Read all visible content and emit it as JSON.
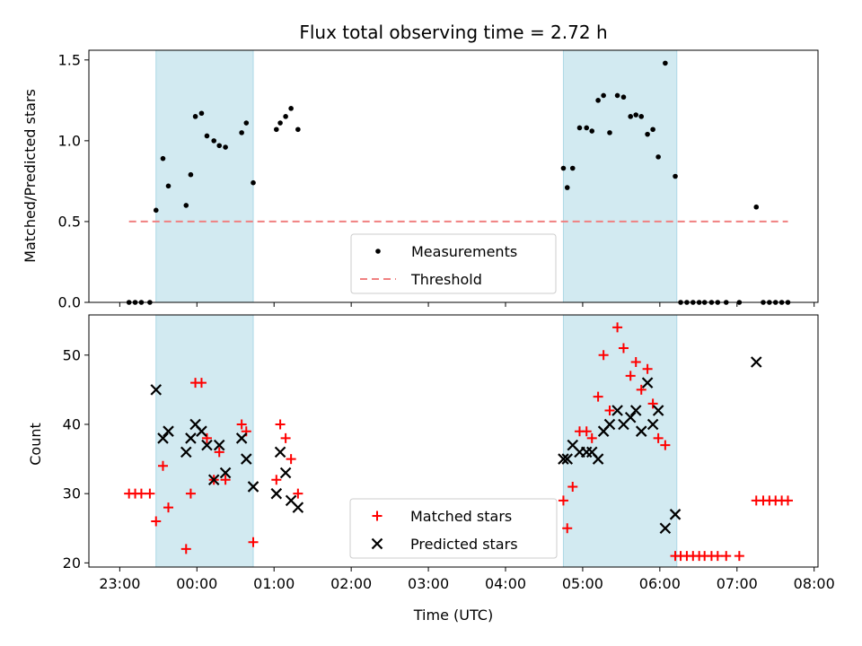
{
  "chart_data": {
    "type": "scatter",
    "title": "Flux total observing time = 2.72 h",
    "xlabel": "Time (UTC)",
    "x_unit": "hours after 23:00 UTC",
    "xlim": [
      -0.4,
      9.05
    ],
    "xticks": [
      {
        "value": 0,
        "label": "23:00"
      },
      {
        "value": 1,
        "label": "00:00"
      },
      {
        "value": 2,
        "label": "01:00"
      },
      {
        "value": 3,
        "label": "02:00"
      },
      {
        "value": 4,
        "label": "03:00"
      },
      {
        "value": 5,
        "label": "04:00"
      },
      {
        "value": 6,
        "label": "05:00"
      },
      {
        "value": 7,
        "label": "06:00"
      },
      {
        "value": 8,
        "label": "07:00"
      },
      {
        "value": 9,
        "label": "08:00"
      }
    ],
    "shaded_intervals": [
      [
        0.47,
        1.73
      ],
      [
        5.75,
        7.22
      ]
    ],
    "shade_color": "#add8e6",
    "panels": [
      {
        "ylabel": "Matched/Predicted stars",
        "ylim": [
          0,
          1.56
        ],
        "yticks": [
          {
            "value": 0,
            "label": "0.0"
          },
          {
            "value": 0.5,
            "label": "0.5"
          },
          {
            "value": 1.0,
            "label": "1.0"
          },
          {
            "value": 1.5,
            "label": "1.5"
          }
        ],
        "legend_position": "lower-center",
        "series": [
          {
            "name": "Measurements",
            "marker": "dot",
            "color": "#000000",
            "points": [
              [
                0.12,
                0
              ],
              [
                0.2,
                0
              ],
              [
                0.28,
                0
              ],
              [
                0.39,
                0
              ],
              [
                0.47,
                0.57
              ],
              [
                0.56,
                0.89
              ],
              [
                0.63,
                0.72
              ],
              [
                0.86,
                0.6
              ],
              [
                0.92,
                0.79
              ],
              [
                0.98,
                1.15
              ],
              [
                1.06,
                1.17
              ],
              [
                1.13,
                1.03
              ],
              [
                1.22,
                1.0
              ],
              [
                1.29,
                0.97
              ],
              [
                1.37,
                0.96
              ],
              [
                1.58,
                1.05
              ],
              [
                1.64,
                1.11
              ],
              [
                1.73,
                0.74
              ],
              [
                2.03,
                1.07
              ],
              [
                2.08,
                1.11
              ],
              [
                2.15,
                1.15
              ],
              [
                2.22,
                1.2
              ],
              [
                2.31,
                1.07
              ],
              [
                5.75,
                0.83
              ],
              [
                5.8,
                0.71
              ],
              [
                5.87,
                0.83
              ],
              [
                5.96,
                1.08
              ],
              [
                6.05,
                1.08
              ],
              [
                6.12,
                1.06
              ],
              [
                6.2,
                1.25
              ],
              [
                6.27,
                1.28
              ],
              [
                6.35,
                1.05
              ],
              [
                6.45,
                1.28
              ],
              [
                6.53,
                1.27
              ],
              [
                6.62,
                1.15
              ],
              [
                6.69,
                1.16
              ],
              [
                6.76,
                1.15
              ],
              [
                6.84,
                1.04
              ],
              [
                6.91,
                1.07
              ],
              [
                6.98,
                0.9
              ],
              [
                7.07,
                1.48
              ],
              [
                7.2,
                0.78
              ],
              [
                7.27,
                0
              ],
              [
                7.35,
                0
              ],
              [
                7.43,
                0
              ],
              [
                7.51,
                0
              ],
              [
                7.58,
                0
              ],
              [
                7.67,
                0
              ],
              [
                7.75,
                0
              ],
              [
                7.86,
                0
              ],
              [
                8.03,
                0
              ],
              [
                8.25,
                0.59
              ],
              [
                8.34,
                0
              ],
              [
                8.42,
                0
              ],
              [
                8.5,
                0
              ],
              [
                8.58,
                0
              ],
              [
                8.66,
                0
              ]
            ]
          },
          {
            "name": "Threshold",
            "marker": "dashed-line",
            "color": "#f08080",
            "points": [
              [
                0.12,
                0.5
              ],
              [
                8.66,
                0.5
              ]
            ]
          }
        ]
      },
      {
        "ylabel": "Count",
        "ylim": [
          19.4,
          55.8
        ],
        "yticks": [
          {
            "value": 20,
            "label": "20"
          },
          {
            "value": 30,
            "label": "30"
          },
          {
            "value": 40,
            "label": "40"
          },
          {
            "value": 50,
            "label": "50"
          }
        ],
        "legend_position": "lower-center",
        "series": [
          {
            "name": "Matched stars",
            "marker": "plus",
            "color": "#ff0000",
            "points": [
              [
                0.12,
                30
              ],
              [
                0.2,
                30
              ],
              [
                0.28,
                30
              ],
              [
                0.39,
                30
              ],
              [
                0.47,
                26
              ],
              [
                0.56,
                34
              ],
              [
                0.63,
                28
              ],
              [
                0.86,
                22
              ],
              [
                0.92,
                30
              ],
              [
                0.98,
                46
              ],
              [
                1.06,
                46
              ],
              [
                1.13,
                38
              ],
              [
                1.22,
                32
              ],
              [
                1.29,
                36
              ],
              [
                1.37,
                32
              ],
              [
                1.58,
                40
              ],
              [
                1.64,
                39
              ],
              [
                1.73,
                23
              ],
              [
                2.03,
                32
              ],
              [
                2.08,
                40
              ],
              [
                2.15,
                38
              ],
              [
                2.22,
                35
              ],
              [
                2.31,
                30
              ],
              [
                5.75,
                29
              ],
              [
                5.8,
                25
              ],
              [
                5.87,
                31
              ],
              [
                5.96,
                39
              ],
              [
                6.05,
                39
              ],
              [
                6.12,
                38
              ],
              [
                6.2,
                44
              ],
              [
                6.27,
                50
              ],
              [
                6.35,
                42
              ],
              [
                6.45,
                54
              ],
              [
                6.53,
                51
              ],
              [
                6.62,
                47
              ],
              [
                6.69,
                49
              ],
              [
                6.76,
                45
              ],
              [
                6.84,
                48
              ],
              [
                6.91,
                43
              ],
              [
                6.98,
                38
              ],
              [
                7.07,
                37
              ],
              [
                7.2,
                21
              ],
              [
                7.27,
                21
              ],
              [
                7.35,
                21
              ],
              [
                7.43,
                21
              ],
              [
                7.51,
                21
              ],
              [
                7.58,
                21
              ],
              [
                7.67,
                21
              ],
              [
                7.75,
                21
              ],
              [
                7.86,
                21
              ],
              [
                8.03,
                21
              ],
              [
                8.25,
                29
              ],
              [
                8.34,
                29
              ],
              [
                8.42,
                29
              ],
              [
                8.5,
                29
              ],
              [
                8.58,
                29
              ],
              [
                8.66,
                29
              ]
            ]
          },
          {
            "name": "Predicted stars",
            "marker": "x",
            "color": "#000000",
            "points": [
              [
                0.47,
                45
              ],
              [
                0.56,
                38
              ],
              [
                0.63,
                39
              ],
              [
                0.86,
                36
              ],
              [
                0.92,
                38
              ],
              [
                0.98,
                40
              ],
              [
                1.06,
                39
              ],
              [
                1.13,
                37
              ],
              [
                1.22,
                32
              ],
              [
                1.29,
                37
              ],
              [
                1.37,
                33
              ],
              [
                1.58,
                38
              ],
              [
                1.64,
                35
              ],
              [
                1.73,
                31
              ],
              [
                2.03,
                30
              ],
              [
                2.08,
                36
              ],
              [
                2.15,
                33
              ],
              [
                2.22,
                29
              ],
              [
                2.31,
                28
              ],
              [
                5.75,
                35
              ],
              [
                5.8,
                35
              ],
              [
                5.87,
                37
              ],
              [
                5.96,
                36
              ],
              [
                6.05,
                36
              ],
              [
                6.12,
                36
              ],
              [
                6.2,
                35
              ],
              [
                6.27,
                39
              ],
              [
                6.35,
                40
              ],
              [
                6.45,
                42
              ],
              [
                6.53,
                40
              ],
              [
                6.62,
                41
              ],
              [
                6.69,
                42
              ],
              [
                6.76,
                39
              ],
              [
                6.84,
                46
              ],
              [
                6.91,
                40
              ],
              [
                6.98,
                42
              ],
              [
                7.07,
                25
              ],
              [
                7.2,
                27
              ],
              [
                8.25,
                49
              ]
            ]
          }
        ]
      }
    ]
  }
}
